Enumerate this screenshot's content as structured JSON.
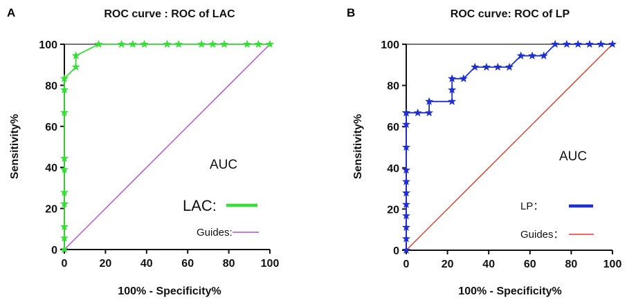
{
  "chart_data": [
    {
      "type": "line",
      "panel": "A",
      "title": "ROC curve  :   ROC of LAC",
      "xlabel": "100% - Specificity%",
      "ylabel": "Sensitivity%",
      "xlim": [
        0,
        100
      ],
      "ylim": [
        0,
        100
      ],
      "xticks": [
        "0",
        "20",
        "40",
        "60",
        "80",
        "100"
      ],
      "yticks": [
        "0",
        "20",
        "40",
        "60",
        "80",
        "100"
      ],
      "annotation": "AUC",
      "series": [
        {
          "name": "LAC:",
          "color": "#33e033",
          "marker": "star",
          "x": [
            0,
            0,
            0,
            0,
            0,
            0,
            0,
            0,
            0,
            0,
            0,
            5.6,
            5.6,
            16.7,
            27.8,
            33.3,
            38.9,
            50,
            55.6,
            66.7,
            72.2,
            77.8,
            88.9,
            94.4,
            100
          ],
          "y": [
            0,
            5.6,
            11.1,
            22.2,
            27.8,
            38.9,
            44.4,
            66.7,
            77.8,
            83.3,
            83.3,
            88.9,
            94.4,
            100,
            100,
            100,
            100,
            100,
            100,
            100,
            100,
            100,
            100,
            100,
            100
          ]
        },
        {
          "name": "Guides:",
          "color": "#b44fd6",
          "marker": "none",
          "x": [
            0,
            100
          ],
          "y": [
            0,
            100
          ]
        }
      ]
    },
    {
      "type": "line",
      "panel": "B",
      "title": "ROC curve: ROC of LP",
      "xlabel": "100% - Specificity%",
      "ylabel": "Sensitivity%",
      "xlim": [
        0,
        100
      ],
      "ylim": [
        0,
        100
      ],
      "xticks": [
        "0",
        "20",
        "40",
        "60",
        "80",
        "100"
      ],
      "yticks": [
        "0",
        "20",
        "40",
        "60",
        "80",
        "100"
      ],
      "annotation": "AUC",
      "series": [
        {
          "name": "LP：",
          "color": "#1f2fd0",
          "marker": "star",
          "x": [
            0,
            0,
            0,
            0,
            0,
            0,
            0,
            0,
            0,
            0,
            0,
            0,
            0,
            5.6,
            11.1,
            11.1,
            22.2,
            22.2,
            22.2,
            27.8,
            33.3,
            38.9,
            44.4,
            50,
            55.6,
            61.1,
            66.7,
            72.2,
            77.8,
            83.3,
            88.9,
            94.4,
            100
          ],
          "y": [
            0,
            5.6,
            11.1,
            16.7,
            22.2,
            27.8,
            33.3,
            38.9,
            50,
            61.1,
            66.7,
            66.7,
            66.7,
            66.7,
            66.7,
            72.2,
            72.2,
            77.8,
            83.3,
            83.3,
            88.9,
            88.9,
            88.9,
            88.9,
            94.4,
            94.4,
            94.4,
            100,
            100,
            100,
            100,
            100,
            100
          ]
        },
        {
          "name": "Guides：",
          "color": "#e83a2c",
          "marker": "none",
          "x": [
            0,
            100
          ],
          "y": [
            0,
            100
          ]
        }
      ]
    }
  ]
}
